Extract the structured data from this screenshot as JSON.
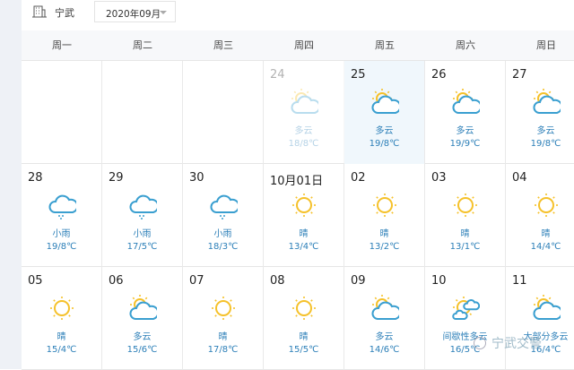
{
  "toolbar": {
    "city": "宁武",
    "month": "2020年09月",
    "city_icon": "building-icon"
  },
  "weekdays": [
    "周一",
    "周二",
    "周三",
    "周四",
    "周五",
    "周六",
    "周日"
  ],
  "colors": {
    "sun": "#f5c12a",
    "cloud": "#3a9fd0",
    "text": "#2c7fb8",
    "selected_bg": "#f0f7fc"
  },
  "rows": [
    [
      null,
      null,
      null,
      {
        "day": "24",
        "icon": "partly-cloudy",
        "cond": "多云",
        "temp": "18/8℃",
        "past": true
      },
      {
        "day": "25",
        "icon": "partly-cloudy",
        "cond": "多云",
        "temp": "19/8℃",
        "selected": true
      },
      {
        "day": "26",
        "icon": "partly-cloudy",
        "cond": "多云",
        "temp": "19/9℃"
      },
      {
        "day": "27",
        "icon": "partly-cloudy",
        "cond": "多云",
        "temp": "19/8℃"
      }
    ],
    [
      {
        "day": "28",
        "icon": "rain",
        "cond": "小雨",
        "temp": "19/8℃"
      },
      {
        "day": "29",
        "icon": "rain",
        "cond": "小雨",
        "temp": "17/5℃"
      },
      {
        "day": "30",
        "icon": "rain",
        "cond": "小雨",
        "temp": "18/3℃"
      },
      {
        "day": "10月01日",
        "icon": "sunny",
        "cond": "晴",
        "temp": "13/4℃"
      },
      {
        "day": "02",
        "icon": "sunny",
        "cond": "晴",
        "temp": "13/2℃"
      },
      {
        "day": "03",
        "icon": "sunny",
        "cond": "晴",
        "temp": "13/1℃"
      },
      {
        "day": "04",
        "icon": "sunny",
        "cond": "晴",
        "temp": "14/4℃"
      }
    ],
    [
      {
        "day": "05",
        "icon": "sunny",
        "cond": "晴",
        "temp": "15/4℃"
      },
      {
        "day": "06",
        "icon": "partly-cloudy",
        "cond": "多云",
        "temp": "15/6℃"
      },
      {
        "day": "07",
        "icon": "sunny",
        "cond": "晴",
        "temp": "17/8℃"
      },
      {
        "day": "08",
        "icon": "sunny",
        "cond": "晴",
        "temp": "15/5℃"
      },
      {
        "day": "09",
        "icon": "partly-cloudy",
        "cond": "多云",
        "temp": "14/6℃"
      },
      {
        "day": "10",
        "icon": "intermittent-cloudy",
        "cond": "间歇性多云",
        "temp": "16/5℃"
      },
      {
        "day": "11",
        "icon": "mostly-cloudy",
        "cond": "大部分多云",
        "temp": "16/4℃"
      }
    ]
  ],
  "watermark": "宁武交警"
}
